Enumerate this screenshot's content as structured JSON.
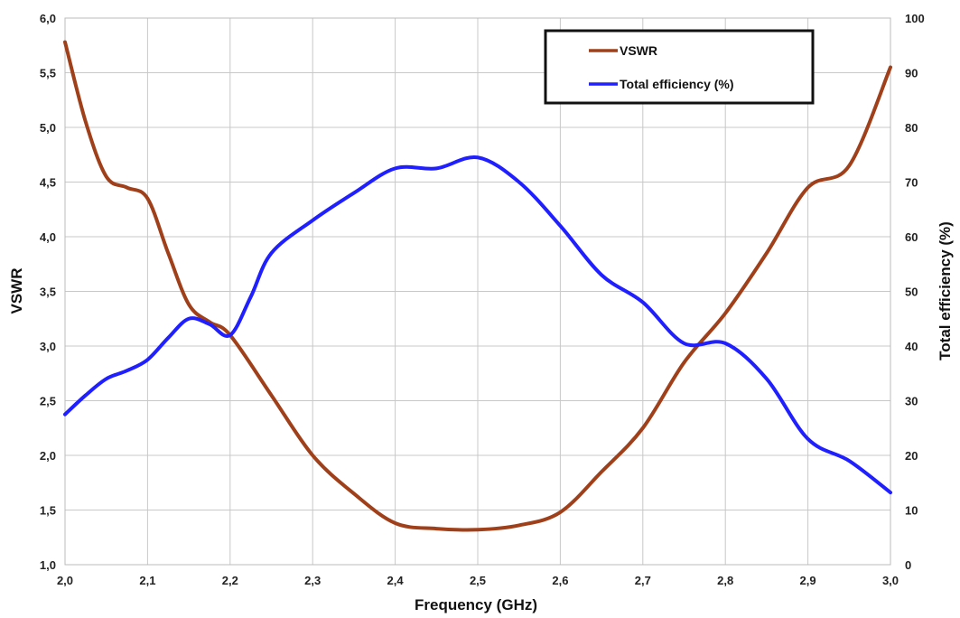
{
  "chart_data": {
    "type": "line",
    "title": "",
    "xlabel": "Frequency (GHz)",
    "ylabel": "VSWR",
    "y2label": "Total efficiency (%)",
    "xlim": [
      2.0,
      3.0
    ],
    "ylim": [
      1.0,
      6.0
    ],
    "y2lim": [
      0,
      100
    ],
    "x_ticks": [
      "2,0",
      "2,1",
      "2,2",
      "2,3",
      "2,4",
      "2,5",
      "2,6",
      "2,7",
      "2,8",
      "2,9",
      "3,0"
    ],
    "y_ticks": [
      "1,0",
      "1,5",
      "2,0",
      "2,5",
      "3,0",
      "3,5",
      "4,0",
      "4,5",
      "5,0",
      "5,5",
      "6,0"
    ],
    "y2_ticks": [
      "0",
      "10",
      "20",
      "30",
      "40",
      "50",
      "60",
      "70",
      "80",
      "90",
      "100"
    ],
    "grid": true,
    "legend_position": "top-right",
    "series": [
      {
        "name": "VSWR",
        "axis": "left",
        "color": "#a0401a",
        "x": [
          2.0,
          2.025,
          2.05,
          2.075,
          2.1,
          2.125,
          2.15,
          2.175,
          2.2,
          2.25,
          2.3,
          2.35,
          2.4,
          2.45,
          2.5,
          2.55,
          2.6,
          2.65,
          2.7,
          2.75,
          2.8,
          2.85,
          2.9,
          2.95,
          3.0
        ],
        "values": [
          5.78,
          5.05,
          4.55,
          4.45,
          4.35,
          3.85,
          3.38,
          3.22,
          3.1,
          2.55,
          2.0,
          1.65,
          1.38,
          1.33,
          1.32,
          1.36,
          1.48,
          1.85,
          2.25,
          2.85,
          3.3,
          3.85,
          4.45,
          4.65,
          5.55
        ]
      },
      {
        "name": "Total efficiency (%)",
        "axis": "right",
        "color": "#1f1fff",
        "x": [
          2.0,
          2.025,
          2.05,
          2.075,
          2.1,
          2.125,
          2.15,
          2.175,
          2.2,
          2.225,
          2.25,
          2.3,
          2.35,
          2.4,
          2.45,
          2.5,
          2.55,
          2.6,
          2.65,
          2.7,
          2.75,
          2.8,
          2.85,
          2.9,
          2.95,
          3.0
        ],
        "values": [
          27.5,
          31,
          34,
          35.5,
          37.5,
          41.5,
          45,
          44,
          42,
          49,
          57,
          63,
          68,
          72.5,
          72.5,
          74.5,
          70,
          62,
          53,
          48,
          40.5,
          40.5,
          34,
          23,
          19,
          13.2
        ]
      }
    ]
  }
}
